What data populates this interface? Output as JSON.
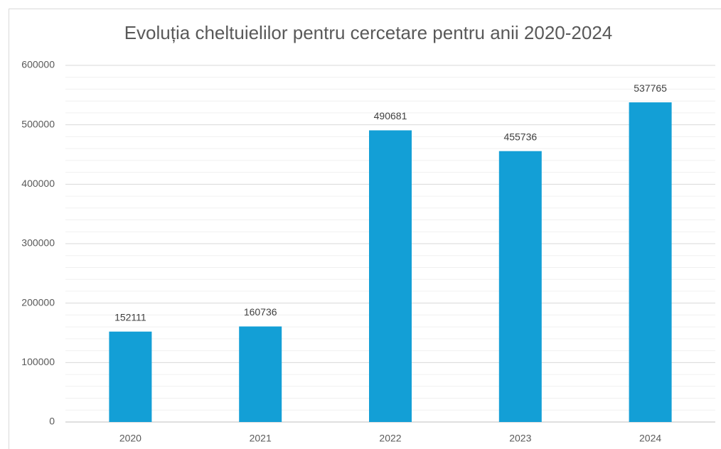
{
  "chart_data": {
    "type": "bar",
    "title": "Evoluția cheltuielilor pentru cercetare pentru anii 2020-2024",
    "categories": [
      "2020",
      "2021",
      "2022",
      "2023",
      "2024"
    ],
    "values": [
      152111,
      160736,
      490681,
      455736,
      537765
    ],
    "color": "#139fd6",
    "ylim": [
      0,
      600000
    ],
    "yticks": [
      0,
      100000,
      200000,
      300000,
      400000,
      500000,
      600000
    ],
    "minor_yticks": [
      20000,
      40000,
      60000,
      80000,
      120000,
      140000,
      160000,
      180000,
      220000,
      240000,
      260000,
      280000,
      320000,
      340000,
      360000,
      380000,
      420000,
      440000,
      460000,
      480000,
      520000,
      540000,
      560000,
      580000
    ],
    "grid": true
  }
}
